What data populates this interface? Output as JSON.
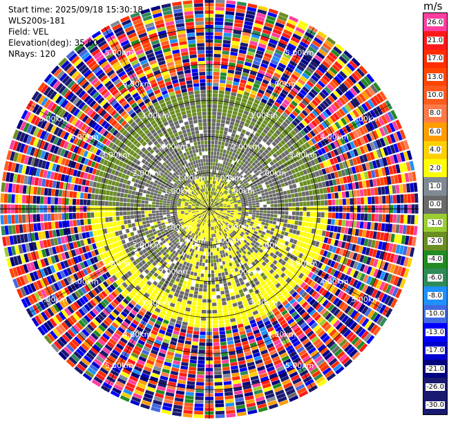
{
  "header": {
    "start_time": "Start time: 2025/09/18 15:30:18",
    "instrument": "WLS200s-181",
    "field": "Field: VEL",
    "elevation": "Elevation(deg): 35.00",
    "nrays": "NRays: 120"
  },
  "colorbar": {
    "unit": "m/s",
    "levels": [
      {
        "label": "26.0",
        "color": "#ff3fa0"
      },
      {
        "label": "21.0",
        "color": "#ff1a1a"
      },
      {
        "label": "17.0",
        "color": "#ff2d00"
      },
      {
        "label": "13.0",
        "color": "#ff4500"
      },
      {
        "label": "10.0",
        "color": "#ff5a1e"
      },
      {
        "label": "8.0",
        "color": "#ff7a4a"
      },
      {
        "label": "6.0",
        "color": "#ff9c00"
      },
      {
        "label": "4.0",
        "color": "#ffd000"
      },
      {
        "label": "2.0",
        "color": "#ffff00"
      },
      {
        "label": "1.0",
        "color": "#7f8a95"
      },
      {
        "label": "0.0",
        "color": "#6a6a6a"
      },
      {
        "label": "-1.0",
        "color": "#9acd32"
      },
      {
        "label": "-2.0",
        "color": "#6b8e23"
      },
      {
        "label": "-4.0",
        "color": "#228b22"
      },
      {
        "label": "-6.0",
        "color": "#2e8b57"
      },
      {
        "label": "-8.0",
        "color": "#1e90ff"
      },
      {
        "label": "-10.0",
        "color": "#4169e1"
      },
      {
        "label": "-13.0",
        "color": "#0000ff"
      },
      {
        "label": "-17.0",
        "color": "#0000cd"
      },
      {
        "label": "-21.0",
        "color": "#000080"
      },
      {
        "label": "-26.0",
        "color": "#191970"
      },
      {
        "label": "-30.0",
        "color": ""
      }
    ]
  },
  "chart_data": {
    "type": "heatmap",
    "projection": "polar-ppi",
    "field": "VEL",
    "units": "m/s",
    "n_rays": 120,
    "elevation_deg": 35.0,
    "range_rings_km": [
      1.0,
      2.0,
      3.0,
      4.0,
      5.0
    ],
    "ring_labels": [
      "1.00km",
      "2.00km",
      "3.00km",
      "4.00km",
      "5.00km"
    ],
    "max_range_km": 5.8,
    "grid": true,
    "value_range": [
      -30.0,
      30.0
    ],
    "regions": [
      {
        "from_km": 0.0,
        "to_km": 0.9,
        "values_m_s": [
          -1.5,
          2.5,
          0.5
        ],
        "note": "mixed yellow / green near center"
      },
      {
        "from_km": 0.9,
        "to_km": 2.6,
        "values_m_s": [
          0.5,
          -1.5,
          2.5
        ],
        "note": "grey and yellow-green velocity band"
      },
      {
        "from_km": 2.6,
        "to_km": 3.3,
        "values_m_s": [
          -1.5,
          2.5,
          3.5
        ],
        "note": "green north, yellow south"
      },
      {
        "from_km": 3.3,
        "to_km": 5.8,
        "values_m_s": "noise",
        "note": "random colour speckle (no signal)"
      }
    ]
  }
}
